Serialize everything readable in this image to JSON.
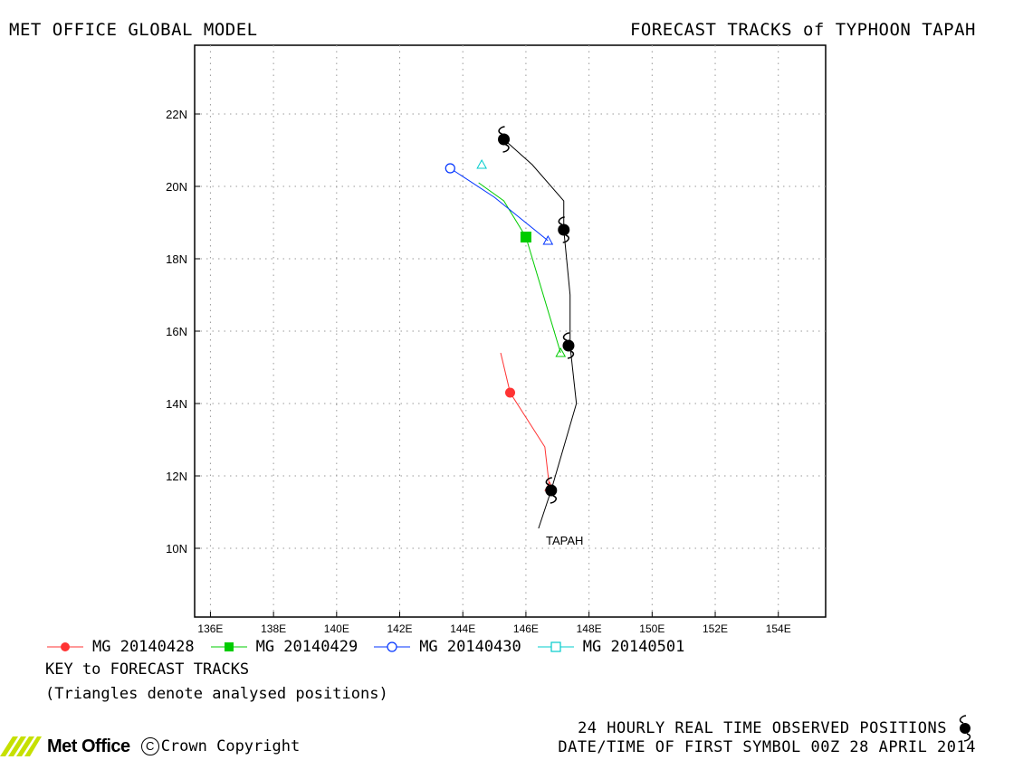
{
  "header": {
    "left_title": "MET OFFICE GLOBAL MODEL",
    "right_title": "FORECAST TRACKS of TYPHOON TAPAH"
  },
  "chart_data": {
    "type": "line",
    "title": "FORECAST TRACKS of TYPHOON TAPAH",
    "xlim": [
      135.5,
      155.5
    ],
    "ylim": [
      8.1,
      23.9
    ],
    "x_ticks": [
      136,
      138,
      140,
      142,
      144,
      146,
      148,
      150,
      152,
      154
    ],
    "x_tick_labels": [
      "136E",
      "138E",
      "140E",
      "142E",
      "144E",
      "146E",
      "148E",
      "150E",
      "152E",
      "154E"
    ],
    "y_ticks": [
      10,
      12,
      14,
      16,
      18,
      20,
      22
    ],
    "y_tick_labels": [
      "10N",
      "12N",
      "14N",
      "16N",
      "18N",
      "20N",
      "22N"
    ],
    "grid": true,
    "storm_label": "TAPAH",
    "observed_track": {
      "color": "#000000",
      "x": [
        146.4,
        146.8,
        147.6,
        147.4,
        147.4,
        147.2,
        147.2,
        146.2,
        145.3
      ],
      "y": [
        10.55,
        11.6,
        14.0,
        15.6,
        17.0,
        18.8,
        19.6,
        20.6,
        21.3
      ],
      "symbols": [
        [
          146.8,
          11.6
        ],
        [
          147.35,
          15.6
        ],
        [
          147.2,
          18.8
        ],
        [
          145.3,
          21.3
        ]
      ]
    },
    "series": [
      {
        "name": "MG 20140428",
        "color": "#ff3333",
        "marker": "filled-circle",
        "x": [
          146.75,
          146.6,
          145.5,
          145.2
        ],
        "y": [
          11.65,
          12.8,
          14.3,
          15.4
        ],
        "marker_points": [
          [
            145.5,
            14.3
          ]
        ],
        "analysis_point": [
          146.75,
          11.7
        ]
      },
      {
        "name": "MG 20140429",
        "color": "#00cc00",
        "marker": "filled-square",
        "x": [
          147.1,
          146.0,
          145.3,
          144.5
        ],
        "y": [
          15.4,
          18.6,
          19.6,
          20.1
        ],
        "marker_points": [
          [
            146.0,
            18.6
          ]
        ],
        "analysis_point": [
          147.1,
          15.4
        ]
      },
      {
        "name": "MG 20140430",
        "color": "#0033ff",
        "marker": "open-circle",
        "x": [
          146.7,
          145.0,
          143.6
        ],
        "y": [
          18.5,
          19.7,
          20.5
        ],
        "marker_points": [
          [
            143.6,
            20.5
          ]
        ],
        "analysis_point": [
          146.7,
          18.5
        ]
      },
      {
        "name": "MG 20140501",
        "color": "#00cccc",
        "marker": "open-square",
        "x": [
          144.6
        ],
        "y": [
          20.6
        ],
        "marker_points": [],
        "analysis_point": [
          144.6,
          20.6
        ]
      }
    ]
  },
  "legend": {
    "items": [
      {
        "label": "MG 20140428",
        "color": "#ff3333",
        "marker": "filled-circle"
      },
      {
        "label": "MG 20140429",
        "color": "#00cc00",
        "marker": "filled-square"
      },
      {
        "label": "MG 20140430",
        "color": "#0033ff",
        "marker": "open-circle"
      },
      {
        "label": "MG 20140501",
        "color": "#00cccc",
        "marker": "open-square"
      }
    ],
    "key_title": "KEY to FORECAST TRACKS",
    "key_note": "(Triangles denote analysed positions)"
  },
  "footer": {
    "observed_note": "24 HOURLY REAL TIME OBSERVED POSITIONS",
    "date_note": "DATE/TIME OF FIRST SYMBOL 00Z 28 APRIL 2014",
    "brand": "Met Office",
    "copyright": "Crown Copyright",
    "copyright_symbol": "C",
    "brand_color": "#c6e000",
    "icon": "typhoon-symbol-icon"
  }
}
